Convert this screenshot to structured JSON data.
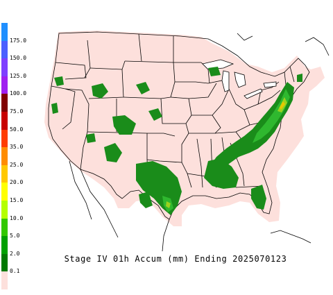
{
  "caption": "Stage IV 01h Accum (mm) Ending 2025070123",
  "legend": {
    "bins": [
      {
        "label": "175.0",
        "color": "#1f8fff"
      },
      {
        "label": "150.0",
        "color": "#4b5fff"
      },
      {
        "label": "125.0",
        "color": "#7f3fff"
      },
      {
        "label": "100.0",
        "color": "#a020f0"
      },
      {
        "label": "75.0",
        "color": "#800000"
      },
      {
        "label": "50.0",
        "color": "#c80000"
      },
      {
        "label": "35.0",
        "color": "#ff3c00"
      },
      {
        "label": "25.0",
        "color": "#ff8c00"
      },
      {
        "label": "20.0",
        "color": "#ffc800"
      },
      {
        "label": "15.0",
        "color": "#ffff00"
      },
      {
        "label": "10.0",
        "color": "#b4ff00"
      },
      {
        "label": "5.0",
        "color": "#32c800"
      },
      {
        "label": "2.0",
        "color": "#00a000"
      },
      {
        "label": "0.1",
        "color": "#007800"
      },
      {
        "label": "",
        "color": "#fde0dc"
      }
    ]
  },
  "colors": {
    "analysis_area": "#fde0dc",
    "rain_light": "#1a8c1a",
    "rain_moderate": "#2fb82f",
    "rain_heavy": "#9ad21e",
    "rain_max": "#e6c800",
    "borders": "#000000"
  }
}
